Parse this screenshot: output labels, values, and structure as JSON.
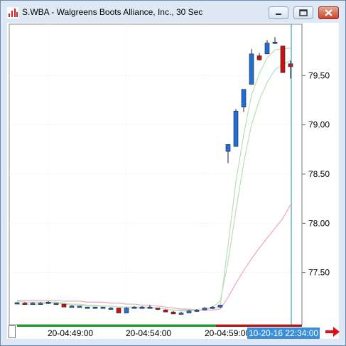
{
  "window": {
    "title": "S.WBA - Walgreens Boots Alliance, Inc., 30 Sec",
    "controls": [
      "minimize-icon",
      "maximize-icon",
      "close-icon"
    ]
  },
  "colors": {
    "up_candle": "#1f6fd6",
    "down_candle": "#cc1111",
    "ma_fast": "#b9ddb9",
    "ma_slow": "#f2a3c0",
    "cursor_line": "#1a8ea8",
    "bar_green": "#1e9e2e",
    "bar_red": "#b81616"
  },
  "chart_data": {
    "type": "candlestick",
    "title": "S.WBA - Walgreens Boots Alliance, Inc., 30 Sec",
    "y_ticks": [
      "79.50",
      "79.00",
      "78.50",
      "78.00",
      "77.50"
    ],
    "y_tick_values": [
      79.5,
      79.0,
      78.5,
      78.0,
      77.5
    ],
    "ylim": [
      77.0,
      80.0
    ],
    "x_tick_labels": [
      "20-04:49:00",
      "20-04:54:00",
      "20-04:59:00"
    ],
    "cursor_label": "10-20-16 22:34:00",
    "candles": [
      {
        "o": 77.19,
        "h": 77.2,
        "l": 77.19,
        "c": 77.195
      },
      {
        "o": 77.19,
        "h": 77.2,
        "l": 77.18,
        "c": 77.18
      },
      {
        "o": 77.18,
        "h": 77.2,
        "l": 77.18,
        "c": 77.19
      },
      {
        "o": 77.19,
        "h": 77.2,
        "l": 77.18,
        "c": 77.19
      },
      {
        "o": 77.19,
        "h": 77.21,
        "l": 77.18,
        "c": 77.2
      },
      {
        "o": 77.19,
        "h": 77.19,
        "l": 77.18,
        "c": 77.19
      },
      {
        "o": 77.18,
        "h": 77.18,
        "l": 77.15,
        "c": 77.15
      },
      {
        "o": 77.16,
        "h": 77.17,
        "l": 77.15,
        "c": 77.16
      },
      {
        "o": 77.16,
        "h": 77.16,
        "l": 77.15,
        "c": 77.16
      },
      {
        "o": 77.15,
        "h": 77.15,
        "l": 77.14,
        "c": 77.15
      },
      {
        "o": 77.15,
        "h": 77.15,
        "l": 77.14,
        "c": 77.15
      },
      {
        "o": 77.14,
        "h": 77.15,
        "l": 77.14,
        "c": 77.15
      },
      {
        "o": 77.14,
        "h": 77.15,
        "l": 77.14,
        "c": 77.14
      },
      {
        "o": 77.14,
        "h": 77.14,
        "l": 77.1,
        "c": 77.09
      },
      {
        "o": 77.09,
        "h": 77.15,
        "l": 77.09,
        "c": 77.14
      },
      {
        "o": 77.15,
        "h": 77.16,
        "l": 77.14,
        "c": 77.15
      },
      {
        "o": 77.15,
        "h": 77.16,
        "l": 77.14,
        "c": 77.15
      },
      {
        "o": 77.15,
        "h": 77.17,
        "l": 77.14,
        "c": 77.15
      },
      {
        "o": 77.14,
        "h": 77.14,
        "l": 77.12,
        "c": 77.13
      },
      {
        "o": 77.12,
        "h": 77.13,
        "l": 77.1,
        "c": 77.1
      },
      {
        "o": 77.1,
        "h": 77.11,
        "l": 77.08,
        "c": 77.08
      },
      {
        "o": 77.08,
        "h": 77.1,
        "l": 77.08,
        "c": 77.09
      },
      {
        "o": 77.09,
        "h": 77.12,
        "l": 77.09,
        "c": 77.11
      },
      {
        "o": 77.11,
        "h": 77.13,
        "l": 77.1,
        "c": 77.12
      },
      {
        "o": 77.12,
        "h": 77.15,
        "l": 77.12,
        "c": 77.14
      },
      {
        "o": 77.14,
        "h": 77.16,
        "l": 77.13,
        "c": 77.15
      },
      {
        "o": 77.15,
        "h": 77.17,
        "l": 77.14,
        "c": 77.17
      },
      {
        "o": 78.73,
        "h": 78.8,
        "l": 78.61,
        "c": 78.8
      },
      {
        "o": 78.78,
        "h": 79.16,
        "l": 78.78,
        "c": 79.14
      },
      {
        "o": 79.18,
        "h": 79.36,
        "l": 79.13,
        "c": 79.36
      },
      {
        "o": 79.41,
        "h": 79.77,
        "l": 79.41,
        "c": 79.72
      },
      {
        "o": 79.7,
        "h": 79.73,
        "l": 79.65,
        "c": 79.66
      },
      {
        "o": 79.72,
        "h": 79.86,
        "l": 79.73,
        "c": 79.83
      },
      {
        "o": 79.84,
        "h": 79.89,
        "l": 79.82,
        "c": 79.84
      },
      {
        "o": 79.8,
        "h": 79.8,
        "l": 79.55,
        "c": 79.53
      },
      {
        "o": 79.62,
        "h": 79.65,
        "l": 79.47,
        "c": 79.59
      }
    ],
    "ma_fast": [
      77.21,
      77.2,
      77.2,
      77.2,
      77.2,
      77.2,
      77.19,
      77.18,
      77.18,
      77.17,
      77.17,
      77.16,
      77.16,
      77.15,
      77.15,
      77.15,
      77.15,
      77.15,
      77.14,
      77.13,
      77.12,
      77.11,
      77.11,
      77.12,
      77.13,
      77.14,
      77.16,
      77.78,
      78.42,
      78.9,
      79.3,
      79.52,
      79.68,
      79.76,
      79.77,
      79.78
    ],
    "ma_slow": [
      77.18,
      77.18,
      77.18,
      77.18,
      77.19,
      77.19,
      77.18,
      77.17,
      77.17,
      77.16,
      77.16,
      77.16,
      77.16,
      77.15,
      77.15,
      77.14,
      77.14,
      77.14,
      77.14,
      77.13,
      77.12,
      77.12,
      77.12,
      77.12,
      77.13,
      77.15,
      77.21,
      77.61,
      78.13,
      78.61,
      79.0,
      79.25,
      79.43,
      79.56,
      79.61,
      79.65
    ],
    "ma_pink": [
      77.22,
      77.22,
      77.22,
      77.22,
      77.22,
      77.22,
      77.21,
      77.21,
      77.21,
      77.2,
      77.2,
      77.2,
      77.19,
      77.19,
      77.18,
      77.18,
      77.17,
      77.17,
      77.16,
      77.15,
      77.14,
      77.13,
      77.13,
      77.12,
      77.12,
      77.12,
      77.13,
      77.25,
      77.39,
      77.52,
      77.64,
      77.75,
      77.85,
      77.95,
      78.05,
      78.19
    ]
  }
}
